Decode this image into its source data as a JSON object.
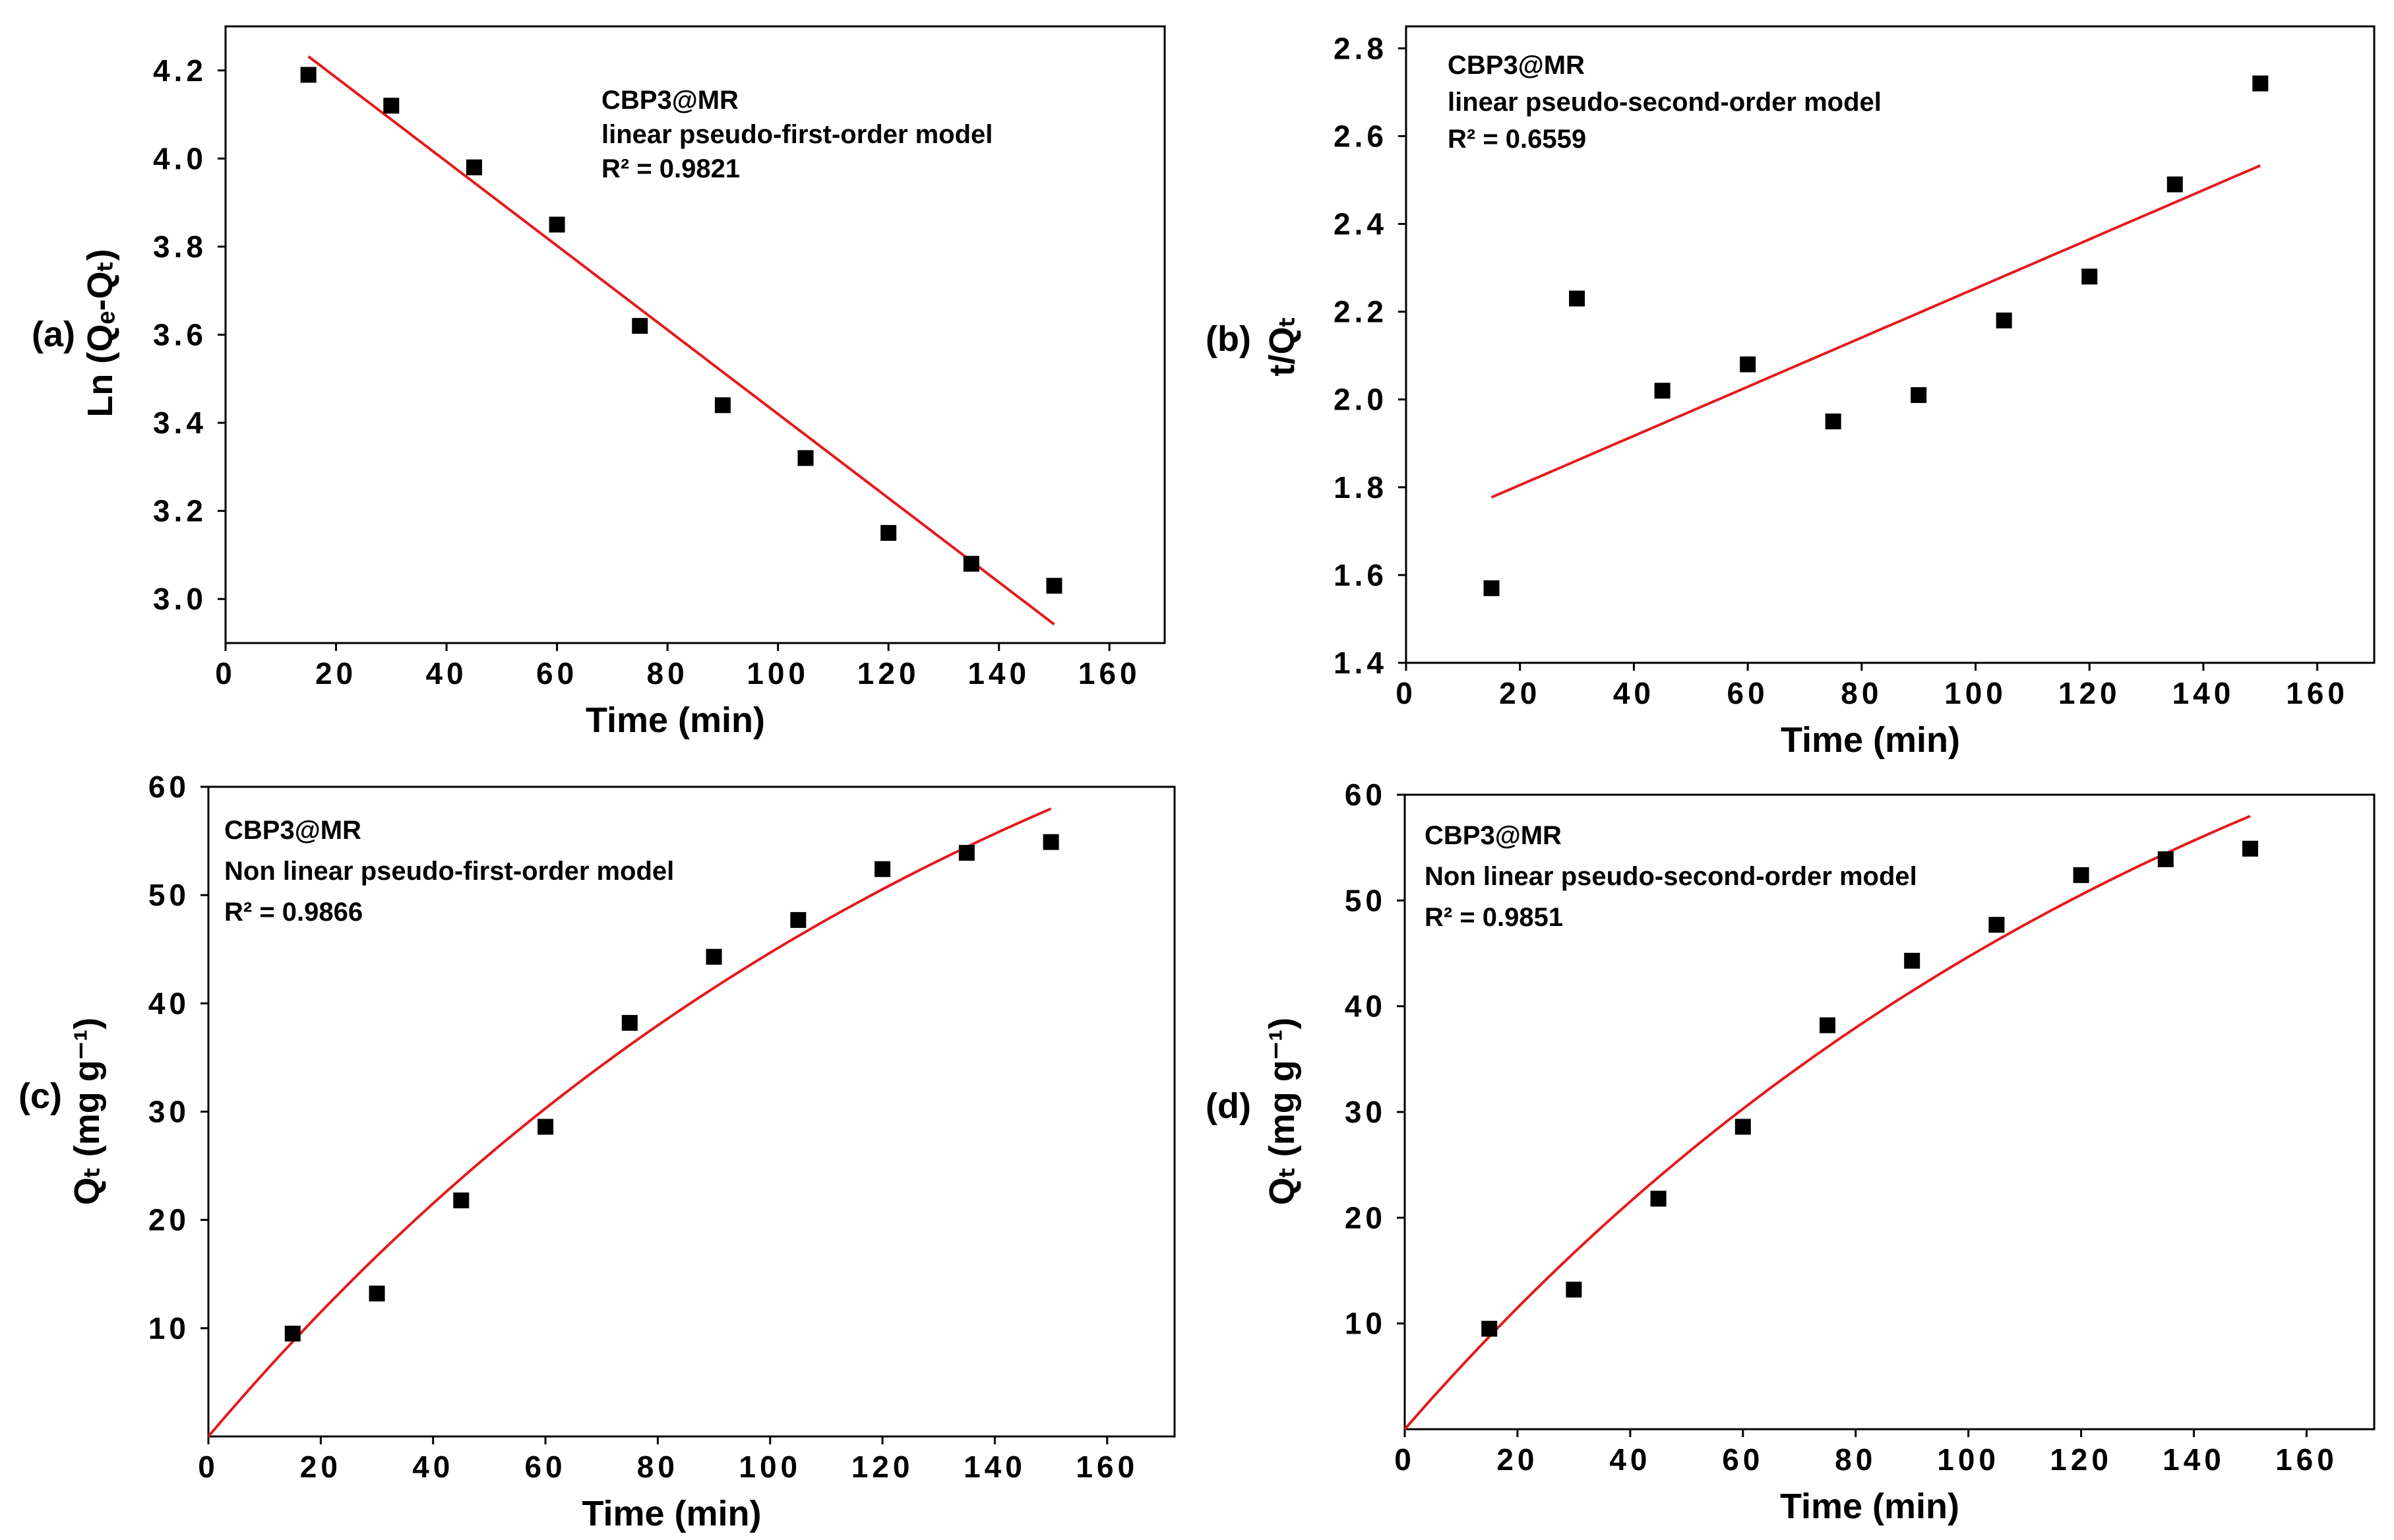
{
  "figure": {
    "background": "#ffffff",
    "marker_color": "#000000",
    "line_color": "#e41a1c"
  },
  "chart_data": [
    {
      "type": "scatter",
      "panel_label": "(a)",
      "xlabel": "Time (min)",
      "ylabel": "Ln (Qₑ-Qₜ)",
      "annotation": [
        "CBP3@MR",
        "linear pseudo-first-order model",
        "R² = 0.9821"
      ],
      "xlim": [
        0,
        170
      ],
      "ylim": [
        2.9,
        4.3
      ],
      "xticks": [
        0,
        20,
        40,
        60,
        80,
        100,
        120,
        140,
        160
      ],
      "xtick_labels": [
        "0",
        "20",
        "40",
        "60",
        "80",
        "100",
        "120",
        "140",
        "160"
      ],
      "yticks": [
        3.0,
        3.2,
        3.4,
        3.6,
        3.8,
        4.0,
        4.2
      ],
      "ytick_labels": [
        "3.0",
        "3.2",
        "3.4",
        "3.6",
        "3.8",
        "4.0",
        "4.2"
      ],
      "series": [
        {
          "name": "experimental",
          "kind": "scatter",
          "x": [
            15,
            30,
            45,
            60,
            75,
            90,
            105,
            120,
            135,
            150
          ],
          "y": [
            4.19,
            4.12,
            3.98,
            3.85,
            3.62,
            3.44,
            3.32,
            3.15,
            3.08,
            3.03
          ]
        },
        {
          "name": "fit",
          "kind": "line",
          "fn": "linear",
          "x_range": [
            15,
            150
          ],
          "params": {
            "a": 4.375,
            "b": -0.00955
          }
        }
      ]
    },
    {
      "type": "scatter",
      "panel_label": "(b)",
      "xlabel": "Time (min)",
      "ylabel": "t/Qₜ",
      "annotation": [
        "CBP3@MR",
        "linear pseudo-second-order model",
        "R² = 0.6559"
      ],
      "xlim": [
        0,
        170
      ],
      "ylim": [
        1.4,
        2.85
      ],
      "xticks": [
        0,
        20,
        40,
        60,
        80,
        100,
        120,
        140,
        160
      ],
      "xtick_labels": [
        "0",
        "20",
        "40",
        "60",
        "80",
        "100",
        "120",
        "140",
        "160"
      ],
      "yticks": [
        1.4,
        1.6,
        1.8,
        2.0,
        2.2,
        2.4,
        2.6,
        2.8
      ],
      "ytick_labels": [
        "1.4",
        "1.6",
        "1.8",
        "2.0",
        "2.2",
        "2.4",
        "2.6",
        "2.8"
      ],
      "series": [
        {
          "name": "experimental",
          "kind": "scatter",
          "x": [
            15,
            30,
            45,
            60,
            75,
            90,
            105,
            120,
            135,
            150
          ],
          "y": [
            1.57,
            2.23,
            2.02,
            2.08,
            1.95,
            2.01,
            2.18,
            2.28,
            2.49,
            2.72
          ]
        },
        {
          "name": "fit",
          "kind": "line",
          "fn": "linear",
          "x_range": [
            15,
            150
          ],
          "params": {
            "a": 1.693,
            "b": 0.0056
          }
        }
      ]
    },
    {
      "type": "scatter",
      "panel_label": "(c)",
      "xlabel": "Time (min)",
      "ylabel": "Qₜ (mg g⁻¹)",
      "annotation": [
        "CBP3@MR",
        "Non linear pseudo-first-order model",
        "R² = 0.9866"
      ],
      "xlim": [
        0,
        172
      ],
      "ylim": [
        0,
        60
      ],
      "xticks": [
        0,
        20,
        40,
        60,
        80,
        100,
        120,
        140,
        160
      ],
      "xtick_labels": [
        "0",
        "20",
        "40",
        "60",
        "80",
        "100",
        "120",
        "140",
        "160"
      ],
      "yticks": [
        10,
        20,
        30,
        40,
        50,
        60
      ],
      "ytick_labels": [
        "10",
        "20",
        "30",
        "40",
        "50",
        "60"
      ],
      "series": [
        {
          "name": "experimental",
          "kind": "scatter",
          "x": [
            15,
            30,
            45,
            60,
            75,
            90,
            105,
            120,
            135,
            150
          ],
          "y": [
            9.5,
            13.2,
            21.8,
            28.6,
            38.2,
            44.3,
            47.7,
            52.4,
            53.9,
            54.9
          ]
        },
        {
          "name": "fit",
          "kind": "line",
          "fn": "pfo",
          "x_range": [
            0,
            150
          ],
          "params": {
            "qe": 91.3,
            "k": 0.00672
          }
        }
      ]
    },
    {
      "type": "scatter",
      "panel_label": "(d)",
      "xlabel": "Time (min)",
      "ylabel": "Qₜ (mg g⁻¹)",
      "annotation": [
        "CBP3@MR",
        "Non linear pseudo-second-order model",
        "R² = 0.9851"
      ],
      "xlim": [
        0,
        172
      ],
      "ylim": [
        0,
        60
      ],
      "xticks": [
        0,
        20,
        40,
        60,
        80,
        100,
        120,
        140,
        160
      ],
      "xtick_labels": [
        "0",
        "20",
        "40",
        "60",
        "80",
        "100",
        "120",
        "140",
        "160"
      ],
      "yticks": [
        10,
        20,
        30,
        40,
        50,
        60
      ],
      "ytick_labels": [
        "10",
        "20",
        "30",
        "40",
        "50",
        "60"
      ],
      "series": [
        {
          "name": "experimental",
          "kind": "scatter",
          "x": [
            15,
            30,
            45,
            60,
            75,
            90,
            105,
            120,
            135,
            150
          ],
          "y": [
            9.5,
            13.2,
            21.8,
            28.6,
            38.2,
            44.3,
            47.7,
            52.4,
            53.9,
            54.9
          ]
        },
        {
          "name": "fit",
          "kind": "line",
          "fn": "pfo",
          "x_range": [
            0,
            150
          ],
          "params": {
            "qe": 91.3,
            "k": 0.00672
          }
        }
      ]
    }
  ]
}
